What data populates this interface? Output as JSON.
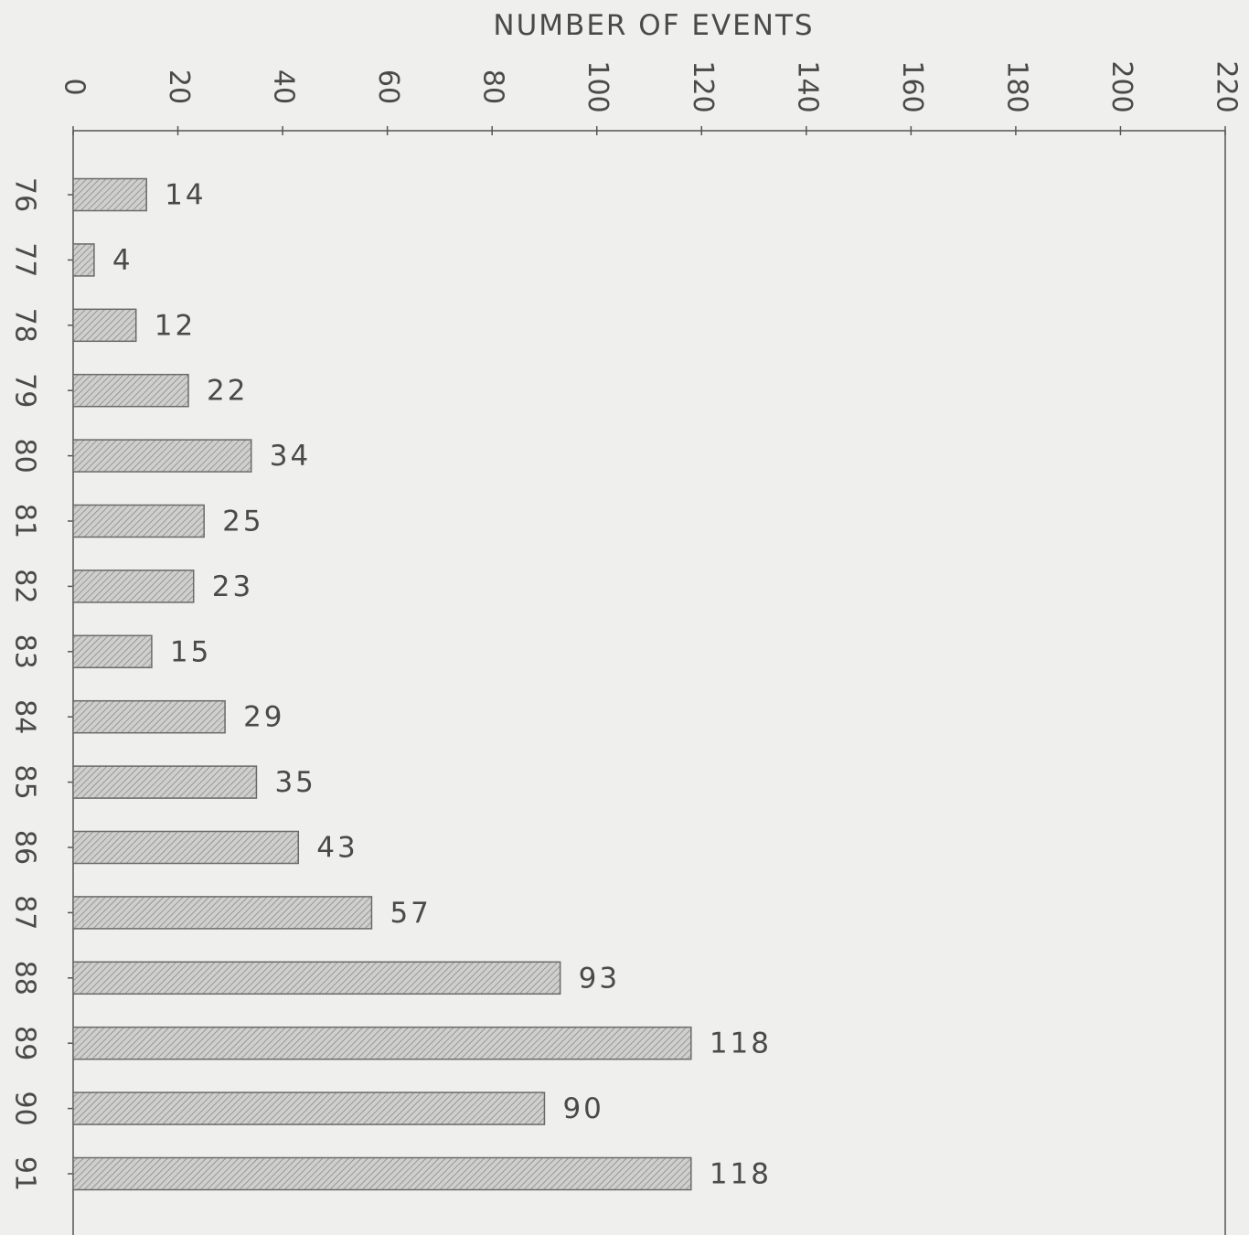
{
  "chart_data": {
    "type": "bar",
    "orientation": "horizontal",
    "xlabel": "NUMBER OF EVENTS",
    "ylabel": "",
    "xlim": [
      0,
      220
    ],
    "x_ticks": [
      0,
      20,
      40,
      60,
      80,
      100,
      120,
      140,
      160,
      180,
      200,
      220
    ],
    "categories": [
      "76",
      "77",
      "78",
      "79",
      "80",
      "81",
      "82",
      "83",
      "84",
      "85",
      "86",
      "87",
      "88",
      "89",
      "90",
      "91"
    ],
    "values": [
      14,
      4,
      12,
      22,
      34,
      25,
      23,
      15,
      29,
      35,
      43,
      57,
      93,
      118,
      90,
      118
    ],
    "data_labels": true,
    "grid": false,
    "bar_fill": "hatched",
    "colors": {
      "bar_fill": "#c9c9c9",
      "hatch": "#8a8a8a",
      "axis": "#555555",
      "text": "#4a4a4a",
      "background": "#efefed"
    }
  }
}
